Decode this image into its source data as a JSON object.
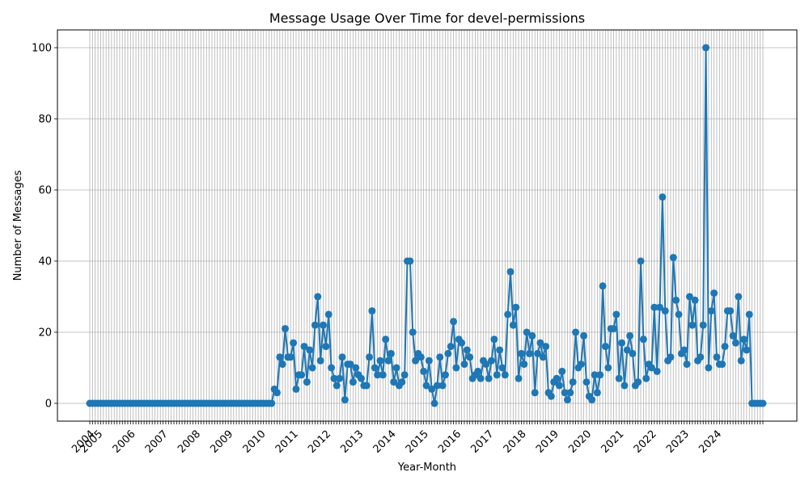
{
  "chart_data": {
    "type": "line",
    "title": "Message Usage Over Time for devel-permissions",
    "xlabel": "Year-Month",
    "ylabel": "Number of Messages",
    "ylim": [
      -5,
      105
    ],
    "y_ticks": [
      0,
      20,
      40,
      60,
      80,
      100
    ],
    "x_tick_labels": [
      "2004",
      "2005",
      "2006",
      "2007",
      "2008",
      "2009",
      "2010",
      "2011",
      "2012",
      "2013",
      "2014",
      "2015",
      "2016",
      "2017",
      "2018",
      "2019",
      "2020",
      "2021",
      "2022",
      "2023",
      "2024"
    ],
    "start": "2004-10",
    "grid": true,
    "marker": "circle",
    "color": "#1f77b4",
    "series": [
      {
        "values": [
          0,
          0,
          0,
          0,
          0,
          0,
          0,
          0,
          0,
          0,
          0,
          0,
          0,
          0,
          0,
          0,
          0,
          0,
          0,
          0,
          0,
          0,
          0,
          0,
          0,
          0,
          0,
          0,
          0,
          0,
          0,
          0,
          0,
          0,
          0,
          0,
          0,
          0,
          0,
          0,
          0,
          0,
          0,
          0,
          0,
          0,
          0,
          0,
          0,
          0,
          0,
          0,
          0,
          0,
          0,
          0,
          0,
          0,
          0,
          0,
          0,
          0,
          0,
          0,
          0,
          0,
          0,
          0,
          4,
          3,
          13,
          11,
          21,
          13,
          13,
          17,
          4,
          8,
          8,
          16,
          6,
          15,
          10,
          22,
          30,
          12,
          22,
          16,
          25,
          10,
          7,
          5,
          7,
          13,
          1,
          11,
          11,
          6,
          10,
          8,
          7,
          5,
          5,
          13,
          26,
          10,
          8,
          12,
          8,
          18,
          12,
          14,
          6,
          10,
          5,
          6,
          8,
          40,
          40,
          20,
          12,
          14,
          13,
          9,
          5,
          12,
          4,
          0,
          5,
          13,
          5,
          8,
          14,
          16,
          23,
          10,
          18,
          17,
          11,
          15,
          13,
          7,
          8,
          9,
          7,
          12,
          11,
          7,
          12,
          18,
          8,
          15,
          10,
          8,
          25,
          37,
          22,
          27,
          7,
          14,
          11,
          20,
          14,
          19,
          3,
          14,
          17,
          13,
          16,
          3,
          2,
          6,
          7,
          5,
          9,
          3,
          1,
          3,
          6,
          20,
          10,
          11,
          19,
          6,
          2,
          1,
          8,
          3,
          8,
          33,
          16,
          10,
          21,
          21,
          25,
          7,
          17,
          5,
          15,
          19,
          14,
          5,
          6,
          40,
          18,
          7,
          11,
          10,
          27,
          9,
          27,
          58,
          26,
          12,
          13,
          41,
          29,
          25,
          14,
          15,
          11,
          30,
          22,
          29,
          12,
          13,
          22,
          100,
          10,
          26,
          31,
          13,
          11,
          11,
          16,
          26,
          26,
          19,
          17,
          30,
          12,
          18,
          15,
          25,
          0,
          0,
          0,
          0,
          0
        ]
      }
    ]
  }
}
